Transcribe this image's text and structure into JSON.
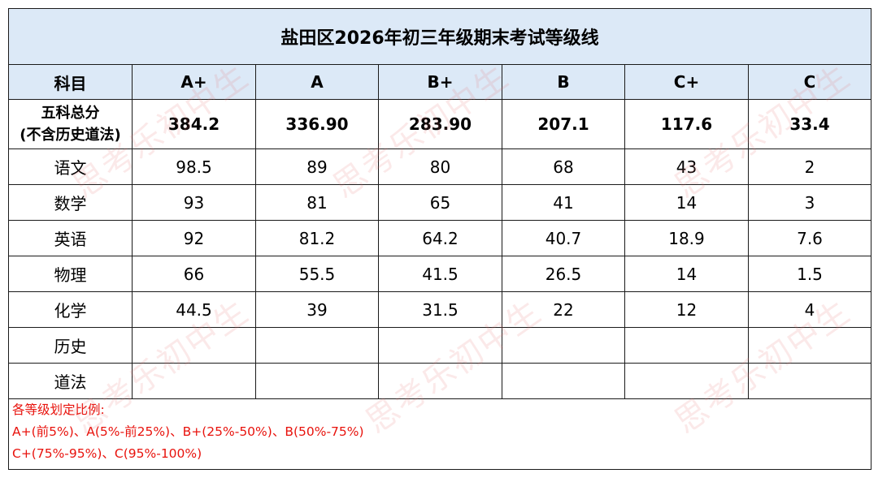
{
  "title": "盐田区2026年初三年级期末考试等级线",
  "header": {
    "subject_label": "科目",
    "grades": [
      "A+",
      "A",
      "B+",
      "B",
      "C+",
      "C"
    ]
  },
  "total_row": {
    "label_line1": "五科总分",
    "label_line2": "(不含历史道法)",
    "values": [
      "384.2",
      "336.90",
      "283.90",
      "207.1",
      "117.6",
      "33.4"
    ]
  },
  "rows": [
    {
      "subject": "语文",
      "values": [
        "98.5",
        "89",
        "80",
        "68",
        "43",
        "2"
      ]
    },
    {
      "subject": "数学",
      "values": [
        "93",
        "81",
        "65",
        "41",
        "14",
        "3"
      ]
    },
    {
      "subject": "英语",
      "values": [
        "92",
        "81.2",
        "64.2",
        "40.7",
        "18.9",
        "7.6"
      ]
    },
    {
      "subject": "物理",
      "values": [
        "66",
        "55.5",
        "41.5",
        "26.5",
        "14",
        "1.5"
      ]
    },
    {
      "subject": "化学",
      "values": [
        "44.5",
        "39",
        "31.5",
        "22",
        "12",
        "4"
      ]
    },
    {
      "subject": "历史",
      "values": [
        "",
        "",
        "",
        "",
        "",
        ""
      ]
    },
    {
      "subject": "道法",
      "values": [
        "",
        "",
        "",
        "",
        "",
        ""
      ]
    }
  ],
  "notes": {
    "line1": "各等级划定比例:",
    "line2": "A+(前5%)、A(5%-前25%)、B+(25%-50%)、B(50%-75%)",
    "line3": "C+(75%-95%)、C(95%-100%)"
  },
  "watermark": "思考乐初中生",
  "colors": {
    "header_bg": "#dce9f7",
    "notes_text": "#e8120c",
    "border": "#1a1a1a"
  }
}
